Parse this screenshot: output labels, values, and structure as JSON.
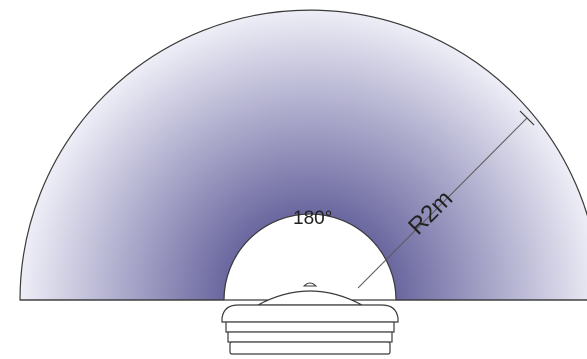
{
  "diagram": {
    "angle_label": "180°",
    "radius_label": "R2m"
  },
  "colors": {
    "field_outer": "#eeeef7",
    "field_inner": "#5c5896",
    "outline": "#3a3a3a",
    "sensor_fill": "#ffffff",
    "background": "#ffffff"
  }
}
